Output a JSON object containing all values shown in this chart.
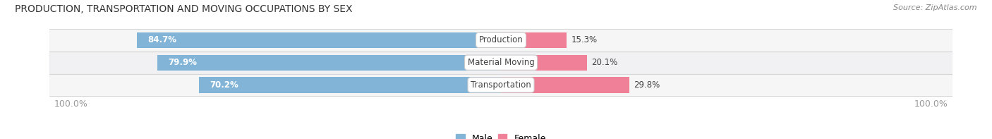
{
  "title": "PRODUCTION, TRANSPORTATION AND MOVING OCCUPATIONS BY SEX",
  "source": "Source: ZipAtlas.com",
  "categories": [
    "Production",
    "Material Moving",
    "Transportation"
  ],
  "male_values": [
    84.7,
    79.9,
    70.2
  ],
  "female_values": [
    15.3,
    20.1,
    29.8
  ],
  "male_color": "#82b4d8",
  "female_color": "#f08098",
  "row_bg_color_light": "#eeeeee",
  "row_bg_color_dark": "#e4e4e8",
  "label_color": "#444444",
  "title_color": "#333333",
  "legend_male_color": "#82b4d8",
  "legend_female_color": "#f08098",
  "axis_label_color": "#999999",
  "figsize": [
    14.06,
    1.97
  ],
  "dpi": 100
}
